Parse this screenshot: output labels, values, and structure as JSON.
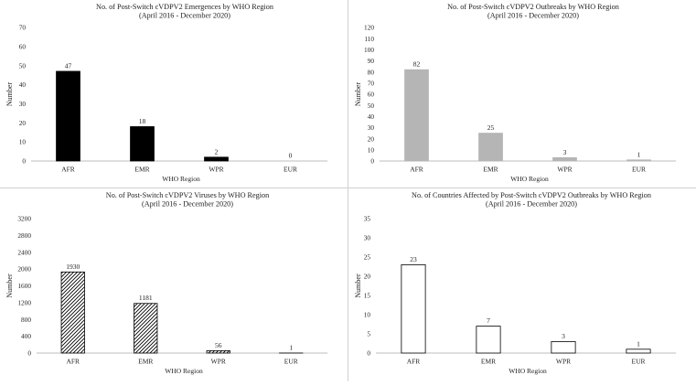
{
  "chart_data": [
    {
      "type": "bar",
      "title": "No. of Post-Switch cVDPV2 Emergences by WHO Region",
      "subtitle": "(April 2016 - December 2020)",
      "xlabel": "WHO Region",
      "ylabel": "Number",
      "categories": [
        "AFR",
        "EMR",
        "WPR",
        "EUR"
      ],
      "values": [
        47,
        18,
        2,
        0
      ],
      "ylim": [
        0,
        70
      ],
      "yticks": [
        "0",
        "10",
        "20",
        "30",
        "40",
        "50",
        "60",
        "70"
      ],
      "ytick_values": [
        0,
        10,
        20,
        30,
        40,
        50,
        60,
        70
      ],
      "data_labels": [
        "47",
        "18",
        "2",
        "0"
      ],
      "grid": false,
      "legend": "none",
      "bar_fill": "#000000",
      "bar_stroke": "#000000",
      "pattern": "solid"
    },
    {
      "type": "bar",
      "title": "No. of Post-Switch cVDPV2 Outbreaks by WHO Region",
      "subtitle": "(April 2016 - December 2020)",
      "xlabel": "WHO Region",
      "ylabel": "Number",
      "categories": [
        "AFR",
        "EMR",
        "WPR",
        "EUR"
      ],
      "values": [
        82,
        25,
        3,
        1
      ],
      "ylim": [
        0,
        120
      ],
      "yticks": [
        "0",
        "10",
        "20",
        "30",
        "40",
        "50",
        "60",
        "70",
        "80",
        "90",
        "100",
        "110",
        "120"
      ],
      "ytick_values": [
        0,
        10,
        20,
        30,
        40,
        50,
        60,
        70,
        80,
        90,
        100,
        110,
        120
      ],
      "data_labels": [
        "82",
        "25",
        "3",
        "1"
      ],
      "grid": false,
      "legend": "none",
      "bar_fill": "#b5b5b5",
      "bar_stroke": "#b5b5b5",
      "pattern": "solid"
    },
    {
      "type": "bar",
      "title": "No. of Post-Switch cVDPV2 Viruses by WHO Region",
      "subtitle": "(April 2016 - December 2020)",
      "xlabel": "WHO Region",
      "ylabel": "Number",
      "categories": [
        "AFR",
        "EMR",
        "WPR",
        "EUR"
      ],
      "values": [
        1930,
        1181,
        56,
        1
      ],
      "ylim": [
        0,
        3200
      ],
      "yticks": [
        "0",
        "400",
        "800",
        "1200",
        "1600",
        "2000",
        "2400",
        "2800",
        "3200"
      ],
      "ytick_values": [
        0,
        400,
        800,
        1200,
        1600,
        2000,
        2400,
        2800,
        3200
      ],
      "data_labels": [
        "1930",
        "1181",
        "56",
        "1"
      ],
      "grid": false,
      "legend": "none",
      "bar_fill": "#ffffff",
      "bar_stroke": "#000000",
      "pattern": "hatch"
    },
    {
      "type": "bar",
      "title": "No. of Countries Affected by Post-Switch cVDPV2 Outbreaks by WHO Region",
      "subtitle": "(April 2016 - December 2020)",
      "xlabel": "WHO Region",
      "ylabel": "Number",
      "categories": [
        "AFR",
        "EMR",
        "WPR",
        "EUR"
      ],
      "values": [
        23,
        7,
        3,
        1
      ],
      "ylim": [
        0,
        35
      ],
      "yticks": [
        "0",
        "5",
        "10",
        "15",
        "20",
        "25",
        "30",
        "35"
      ],
      "ytick_values": [
        0,
        5,
        10,
        15,
        20,
        25,
        30,
        35
      ],
      "data_labels": [
        "23",
        "7",
        "3",
        "1"
      ],
      "grid": false,
      "legend": "none",
      "bar_fill": "#ffffff",
      "bar_stroke": "#000000",
      "pattern": "solid"
    }
  ]
}
